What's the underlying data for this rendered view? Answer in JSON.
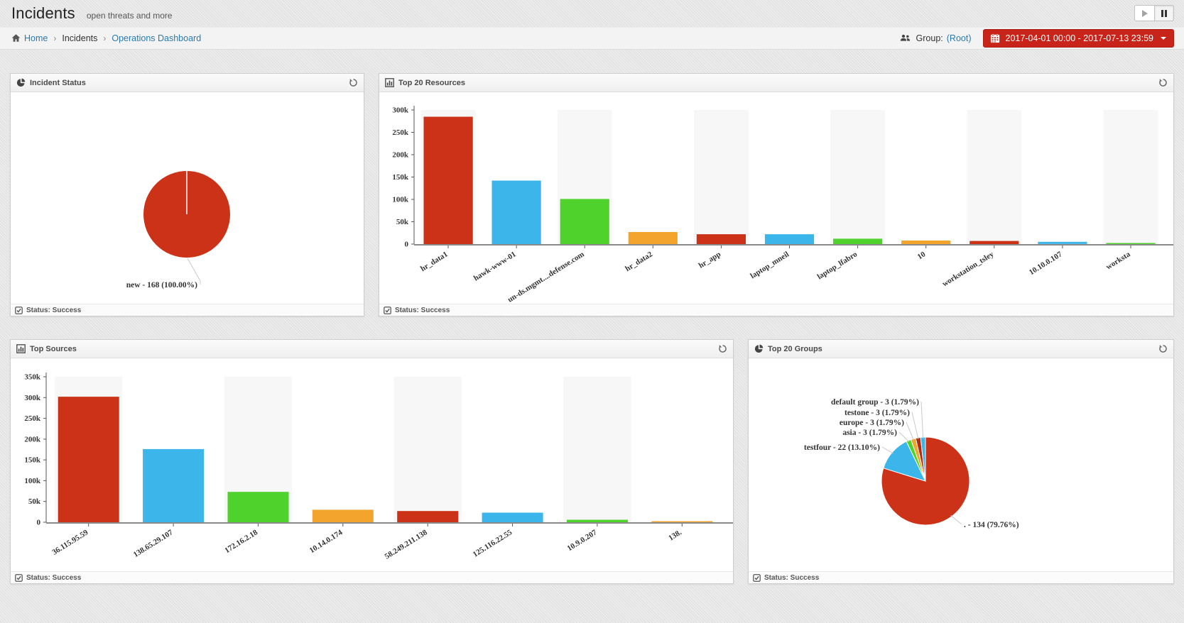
{
  "header": {
    "title": "Incidents",
    "subtitle": "open threats and more"
  },
  "breadcrumb": {
    "home": "Home",
    "section": "Incidents",
    "current": "Operations Dashboard",
    "group_label": "Group:",
    "group_value": "(Root)",
    "date_range": "2017-04-01 00:00 - 2017-07-13 23:59"
  },
  "panels": [
    {
      "title": "Incident Status",
      "status": "Status: Success",
      "icon": "pie-chart-icon"
    },
    {
      "title": "Top 20 Resources",
      "status": "Status: Success",
      "icon": "bar-chart-icon"
    },
    {
      "title": "Top Sources",
      "status": "Status: Success",
      "icon": "bar-chart-icon"
    },
    {
      "title": "Top 20 Groups",
      "status": "Status: Success",
      "icon": "pie-chart-icon"
    }
  ],
  "colors": {
    "red": "#cb3217",
    "blue": "#3cb5ea",
    "green": "#4fd22c",
    "orange": "#f3a42c",
    "dark_red": "#b52b12",
    "button_red": "#c9241a",
    "link_blue": "#2a7ab0",
    "stripe": "#f7f7f7"
  },
  "chart_data": [
    {
      "type": "pie",
      "title": "Incident Status",
      "legend_position": "none",
      "slices": [
        {
          "label": "new",
          "value": 168,
          "percent": 100.0,
          "display": "new - 168 (100.00%)",
          "color": "#cb3217"
        }
      ]
    },
    {
      "type": "bar",
      "title": "Top 20 Resources",
      "categories": [
        "hr_data1",
        "hawk-www-01",
        "un-ds.mgmt....defense.com",
        "hr_data2",
        "hr_app",
        "laptop_mneil",
        "laptop_lfabro",
        "10",
        "workstation_tsley",
        "10.10.0.107",
        "worksta"
      ],
      "values": [
        285000,
        142000,
        101000,
        27000,
        22000,
        22000,
        12000,
        8000,
        7000,
        5000,
        2000
      ],
      "xlabel": "",
      "ylabel": "",
      "ylim": [
        0,
        300000
      ],
      "ytick_step": 50000,
      "grid": false,
      "palette": [
        "#cb3217",
        "#3cb5ea",
        "#4fd22c",
        "#f3a42c"
      ]
    },
    {
      "type": "bar",
      "title": "Top Sources",
      "categories": [
        "36.115.95.59",
        "138.65.29.107",
        "172.16.2.18",
        "10.14.0.174",
        "58.249.211.138",
        "125.116.22.55",
        "10.9.0.207",
        "138."
      ],
      "values": [
        302000,
        176000,
        73000,
        30000,
        27000,
        23000,
        6000,
        1500
      ],
      "xlabel": "",
      "ylabel": "",
      "ylim": [
        0,
        350000
      ],
      "ytick_step": 50000,
      "grid": false,
      "palette": [
        "#cb3217",
        "#3cb5ea",
        "#4fd22c",
        "#f3a42c"
      ]
    },
    {
      "type": "pie",
      "title": "Top 20 Groups",
      "legend_position": "none",
      "slices": [
        {
          "label": ".",
          "value": 134,
          "percent": 79.76,
          "display": ". - 134 (79.76%)",
          "color": "#cb3217"
        },
        {
          "label": "testfour",
          "value": 22,
          "percent": 13.1,
          "display": "testfour - 22 (13.10%)",
          "color": "#3cb5ea"
        },
        {
          "label": "asia",
          "value": 3,
          "percent": 1.79,
          "display": "asia - 3 (1.79%)",
          "color": "#4fd22c"
        },
        {
          "label": "europe",
          "value": 3,
          "percent": 1.79,
          "display": "europe - 3 (1.79%)",
          "color": "#f3a42c"
        },
        {
          "label": "testone",
          "value": 3,
          "percent": 1.79,
          "display": "testone - 3 (1.79%)",
          "color": "#b52b12"
        },
        {
          "label": "default group",
          "value": 3,
          "percent": 1.79,
          "display": "default group - 3 (1.79%)",
          "color": "#3cb5ea"
        }
      ]
    }
  ]
}
